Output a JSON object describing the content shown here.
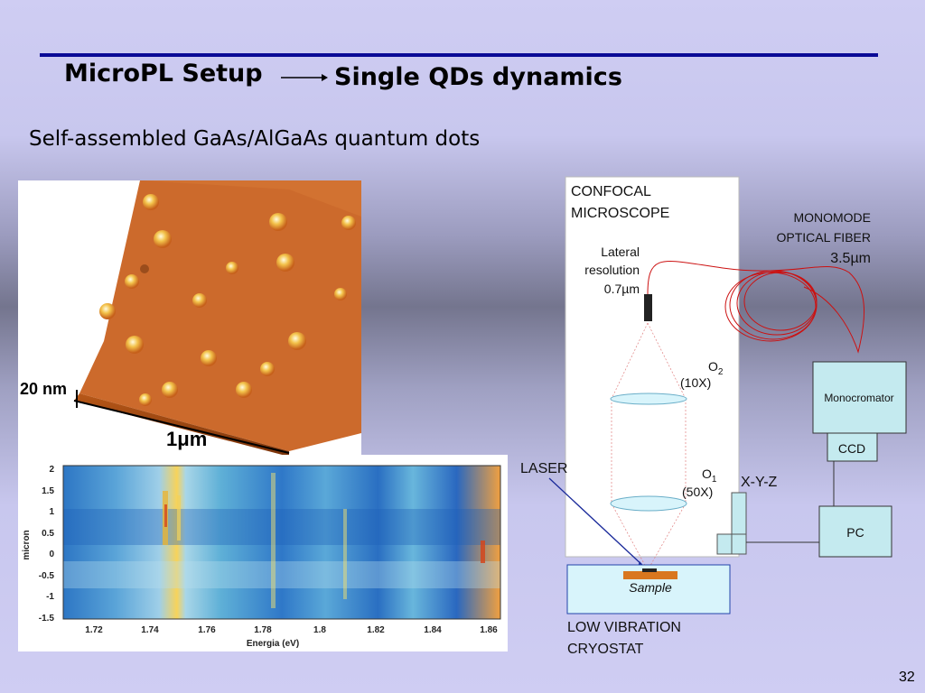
{
  "slide": {
    "title_left": "MicroPL Setup",
    "title_right": "Single QDs dynamics",
    "subtitle": "Self-assembled GaAs/AlGaAs quantum dots",
    "page_number": "32"
  },
  "afm_image": {
    "scale_z": "20 nm",
    "scale_xy": "1μm"
  },
  "pl_map": {
    "ylabel": "micron",
    "xlabel": "Energia (eV)",
    "yticks": [
      "2",
      "1.5",
      "1",
      "0.5",
      "0",
      "-0.5",
      "-1",
      "-1.5"
    ],
    "xticks": [
      "1.72",
      "1.74",
      "1.76",
      "1.78",
      "1.8",
      "1.82",
      "1.84",
      "1.86"
    ]
  },
  "setup": {
    "confocal_1": "CONFOCAL",
    "confocal_2": "MICROSCOPE",
    "lateral_1": "Lateral",
    "lateral_2": "resolution",
    "lateral_3": "0.7µm",
    "fiber_1": "MONOMODE",
    "fiber_2": "OPTICAL FIBER",
    "fiber_3": "3.5µm",
    "o2_label": "O",
    "o2_sub": "2",
    "o2_mag": "(10X)",
    "o1_label": "O",
    "o1_sub": "1",
    "o1_mag": "(50X)",
    "laser": "LASER",
    "xyz": "X-Y-Z",
    "monochromator": "Monocromator",
    "ccd": "CCD",
    "pc": "PC",
    "sample": "Sample",
    "cryostat_1": "LOW VIBRATION",
    "cryostat_2": "CRYOSTAT"
  }
}
